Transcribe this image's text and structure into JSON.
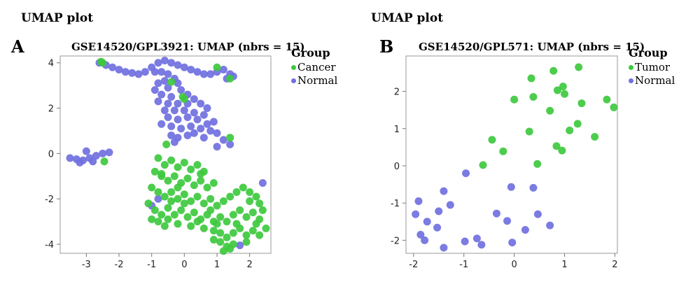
{
  "panels": [
    {
      "section_title": "UMAP plot",
      "letter": "A",
      "chart_title": "GSE14520/GPL3921: UMAP (nbrs = 15)",
      "legend_title": "Group",
      "legend": [
        {
          "label": "Cancer",
          "color": "#3ec93e"
        },
        {
          "label": "Normal",
          "color": "#7070e0"
        }
      ]
    },
    {
      "section_title": "UMAP plot",
      "letter": "B",
      "chart_title": "GSE14520/GPL571: UMAP (nbrs = 15)",
      "legend_title": "Group",
      "legend": [
        {
          "label": "Tumor",
          "color": "#3ec93e"
        },
        {
          "label": "Normal",
          "color": "#7070e0"
        }
      ]
    }
  ],
  "chart_data": [
    {
      "type": "scatter",
      "title": "GSE14520/GPL3921: UMAP (nbrs = 15)",
      "xlabel": "",
      "ylabel": "",
      "xlim": [
        -3.8,
        2.65
      ],
      "ylim": [
        -4.4,
        4.3
      ],
      "xticks": [
        -3,
        -2,
        -1,
        0,
        1,
        2
      ],
      "yticks": [
        -4,
        -2,
        0,
        2,
        4
      ],
      "legend_position": "right",
      "grid": false,
      "series": [
        {
          "name": "Normal",
          "color": "#7070e0",
          "points": [
            [
              -2.6,
              4.0
            ],
            [
              -2.4,
              3.9
            ],
            [
              -2.2,
              3.8
            ],
            [
              -2.0,
              3.7
            ],
            [
              -1.8,
              3.6
            ],
            [
              -1.6,
              3.55
            ],
            [
              -1.4,
              3.5
            ],
            [
              -1.2,
              3.6
            ],
            [
              -1.0,
              3.8
            ],
            [
              -0.8,
              4.0
            ],
            [
              -0.6,
              4.1
            ],
            [
              -0.4,
              4.0
            ],
            [
              -0.2,
              3.9
            ],
            [
              0.0,
              3.8
            ],
            [
              0.2,
              3.7
            ],
            [
              0.4,
              3.6
            ],
            [
              0.6,
              3.5
            ],
            [
              0.8,
              3.5
            ],
            [
              1.0,
              3.6
            ],
            [
              1.2,
              3.7
            ],
            [
              1.4,
              3.5
            ],
            [
              1.5,
              3.4
            ],
            [
              1.3,
              3.3
            ],
            [
              -0.9,
              3.6
            ],
            [
              -0.7,
              3.6
            ],
            [
              -0.5,
              3.5
            ],
            [
              -0.3,
              3.3
            ],
            [
              -0.6,
              3.2
            ],
            [
              -0.8,
              3.1
            ],
            [
              -0.5,
              2.9
            ],
            [
              -0.2,
              3.1
            ],
            [
              -0.9,
              2.8
            ],
            [
              -0.7,
              2.6
            ],
            [
              -0.4,
              2.5
            ],
            [
              -0.1,
              2.8
            ],
            [
              0.1,
              2.6
            ],
            [
              -0.8,
              2.3
            ],
            [
              -0.5,
              2.2
            ],
            [
              -0.2,
              2.2
            ],
            [
              0.1,
              2.2
            ],
            [
              0.3,
              2.4
            ],
            [
              0.5,
              2.2
            ],
            [
              -0.6,
              1.9
            ],
            [
              -0.3,
              1.9
            ],
            [
              0.0,
              1.9
            ],
            [
              0.3,
              1.8
            ],
            [
              0.6,
              1.7
            ],
            [
              -0.5,
              1.6
            ],
            [
              -0.2,
              1.5
            ],
            [
              0.1,
              1.6
            ],
            [
              0.4,
              1.5
            ],
            [
              0.7,
              1.3
            ],
            [
              -0.4,
              1.2
            ],
            [
              -0.1,
              1.1
            ],
            [
              0.2,
              1.2
            ],
            [
              0.5,
              1.1
            ],
            [
              0.8,
              1.0
            ],
            [
              1.0,
              0.9
            ],
            [
              -0.4,
              0.8
            ],
            [
              -0.2,
              0.7
            ],
            [
              0.1,
              0.8
            ],
            [
              0.6,
              0.7
            ],
            [
              1.2,
              0.6
            ],
            [
              1.4,
              0.4
            ],
            [
              1.0,
              0.3
            ],
            [
              -0.3,
              0.5
            ],
            [
              0.9,
              1.4
            ],
            [
              0.3,
              0.9
            ],
            [
              -0.7,
              1.3
            ],
            [
              0.7,
              2.0
            ],
            [
              -3.5,
              -0.2
            ],
            [
              -3.3,
              -0.25
            ],
            [
              -3.1,
              -0.3
            ],
            [
              -2.9,
              -0.2
            ],
            [
              -2.7,
              -0.1
            ],
            [
              -2.5,
              0.0
            ],
            [
              -2.3,
              0.05
            ],
            [
              -3.0,
              0.1
            ],
            [
              -3.2,
              -0.4
            ],
            [
              -2.8,
              -0.35
            ],
            [
              -0.8,
              -2.0
            ],
            [
              -1.0,
              -2.3
            ],
            [
              1.7,
              -4.05
            ],
            [
              2.4,
              -1.3
            ]
          ]
        },
        {
          "name": "Cancer",
          "color": "#3ec93e",
          "points": [
            [
              -2.5,
              4.0
            ],
            [
              -2.55,
              4.05
            ],
            [
              -0.4,
              3.15
            ],
            [
              1.0,
              3.8
            ],
            [
              1.4,
              3.3
            ],
            [
              0.0,
              2.4
            ],
            [
              -0.05,
              2.5
            ],
            [
              1.4,
              0.7
            ],
            [
              -0.55,
              0.4
            ],
            [
              -2.45,
              -0.35
            ],
            [
              -0.8,
              -0.2
            ],
            [
              -0.6,
              -0.5
            ],
            [
              -0.4,
              -0.3
            ],
            [
              -0.2,
              -0.6
            ],
            [
              0.0,
              -0.4
            ],
            [
              0.2,
              -0.7
            ],
            [
              0.4,
              -0.5
            ],
            [
              0.6,
              -0.8
            ],
            [
              -0.9,
              -0.8
            ],
            [
              -0.7,
              -1.0
            ],
            [
              -0.5,
              -1.2
            ],
            [
              -0.3,
              -1.0
            ],
            [
              -0.1,
              -1.3
            ],
            [
              0.1,
              -1.1
            ],
            [
              0.3,
              -1.4
            ],
            [
              0.5,
              -1.2
            ],
            [
              0.7,
              -1.5
            ],
            [
              0.9,
              -1.3
            ],
            [
              -1.0,
              -1.5
            ],
            [
              -0.8,
              -1.7
            ],
            [
              -0.6,
              -1.9
            ],
            [
              -0.4,
              -1.7
            ],
            [
              -0.2,
              -2.0
            ],
            [
              0.0,
              -1.8
            ],
            [
              0.2,
              -2.1
            ],
            [
              0.4,
              -1.9
            ],
            [
              0.6,
              -2.2
            ],
            [
              0.8,
              -2.0
            ],
            [
              1.0,
              -2.3
            ],
            [
              1.2,
              -2.1
            ],
            [
              1.4,
              -1.9
            ],
            [
              1.6,
              -1.7
            ],
            [
              1.8,
              -1.5
            ],
            [
              2.0,
              -1.7
            ],
            [
              2.2,
              -1.9
            ],
            [
              2.3,
              -2.2
            ],
            [
              -1.1,
              -2.2
            ],
            [
              -0.9,
              -2.5
            ],
            [
              -0.7,
              -2.7
            ],
            [
              -0.5,
              -2.4
            ],
            [
              -0.3,
              -2.7
            ],
            [
              -0.1,
              -2.5
            ],
            [
              0.1,
              -2.8
            ],
            [
              0.3,
              -2.6
            ],
            [
              0.5,
              -2.9
            ],
            [
              0.7,
              -2.7
            ],
            [
              0.9,
              -3.0
            ],
            [
              1.1,
              -2.8
            ],
            [
              1.3,
              -3.0
            ],
            [
              1.5,
              -2.7
            ],
            [
              1.7,
              -2.5
            ],
            [
              1.9,
              -2.8
            ],
            [
              2.1,
              -2.6
            ],
            [
              2.3,
              -2.9
            ],
            [
              2.4,
              -2.5
            ],
            [
              -1.0,
              -2.9
            ],
            [
              -0.8,
              -3.0
            ],
            [
              -0.6,
              -3.2
            ],
            [
              -0.2,
              -3.1
            ],
            [
              0.2,
              -3.2
            ],
            [
              0.6,
              -3.3
            ],
            [
              0.9,
              -3.4
            ],
            [
              1.1,
              -3.5
            ],
            [
              1.3,
              -3.7
            ],
            [
              1.5,
              -3.5
            ],
            [
              1.7,
              -3.3
            ],
            [
              1.9,
              -3.6
            ],
            [
              2.1,
              -3.4
            ],
            [
              2.3,
              -3.6
            ],
            [
              2.5,
              -3.3
            ],
            [
              0.9,
              -3.8
            ],
            [
              1.1,
              -3.9
            ],
            [
              1.3,
              -4.1
            ],
            [
              1.5,
              -4.0
            ],
            [
              1.4,
              -4.2
            ],
            [
              1.2,
              -4.3
            ],
            [
              1.9,
              -3.9
            ],
            [
              2.2,
              -3.1
            ],
            [
              -0.7,
              -0.9
            ],
            [
              0.0,
              -2.2
            ],
            [
              0.4,
              -3.0
            ],
            [
              -0.4,
              -2.1
            ],
            [
              0.8,
              -2.5
            ],
            [
              1.6,
              -3.1
            ],
            [
              2.0,
              -2.1
            ],
            [
              -0.2,
              -1.5
            ],
            [
              0.5,
              -0.9
            ],
            [
              1.0,
              -3.1
            ],
            [
              -0.5,
              -2.9
            ]
          ]
        }
      ]
    },
    {
      "type": "scatter",
      "title": "GSE14520/GPL571: UMAP (nbrs = 15)",
      "xlabel": "",
      "ylabel": "",
      "xlim": [
        -2.15,
        2.05
      ],
      "ylim": [
        -2.35,
        2.95
      ],
      "xticks": [
        -2,
        -1,
        0,
        1,
        2
      ],
      "yticks": [
        -2,
        -1,
        0,
        1,
        2
      ],
      "legend_position": "right",
      "grid": false,
      "series": [
        {
          "name": "Tumor",
          "color": "#3ec93e",
          "points": [
            [
              0.34,
              2.35
            ],
            [
              0.78,
              2.55
            ],
            [
              1.28,
              2.65
            ],
            [
              0.0,
              1.78
            ],
            [
              0.38,
              1.85
            ],
            [
              0.86,
              2.03
            ],
            [
              0.97,
              2.13
            ],
            [
              1.0,
              1.93
            ],
            [
              1.34,
              1.68
            ],
            [
              1.84,
              1.78
            ],
            [
              1.98,
              1.57
            ],
            [
              0.71,
              1.48
            ],
            [
              0.3,
              0.92
            ],
            [
              1.1,
              0.95
            ],
            [
              1.26,
              1.13
            ],
            [
              1.6,
              0.78
            ],
            [
              -0.44,
              0.7
            ],
            [
              -0.22,
              0.39
            ],
            [
              0.84,
              0.53
            ],
            [
              0.95,
              0.41
            ],
            [
              -0.62,
              0.02
            ],
            [
              0.46,
              0.05
            ]
          ]
        },
        {
          "name": "Normal",
          "color": "#7070e0",
          "points": [
            [
              -1.9,
              -0.95
            ],
            [
              -1.96,
              -1.3
            ],
            [
              -1.4,
              -0.68
            ],
            [
              -1.27,
              -1.05
            ],
            [
              -1.5,
              -1.22
            ],
            [
              -0.96,
              -0.2
            ],
            [
              -0.35,
              -1.28
            ],
            [
              -0.14,
              -1.48
            ],
            [
              -0.06,
              -0.57
            ],
            [
              0.38,
              -0.59
            ],
            [
              0.47,
              -1.3
            ],
            [
              -1.73,
              -1.5
            ],
            [
              -1.53,
              -1.66
            ],
            [
              -1.86,
              -1.85
            ],
            [
              -1.78,
              -2.0
            ],
            [
              -1.4,
              -2.2
            ],
            [
              -0.98,
              -2.03
            ],
            [
              -0.74,
              -1.95
            ],
            [
              -0.65,
              -2.12
            ],
            [
              -0.04,
              -2.06
            ],
            [
              0.22,
              -1.72
            ],
            [
              0.71,
              -1.6
            ]
          ]
        }
      ]
    }
  ]
}
